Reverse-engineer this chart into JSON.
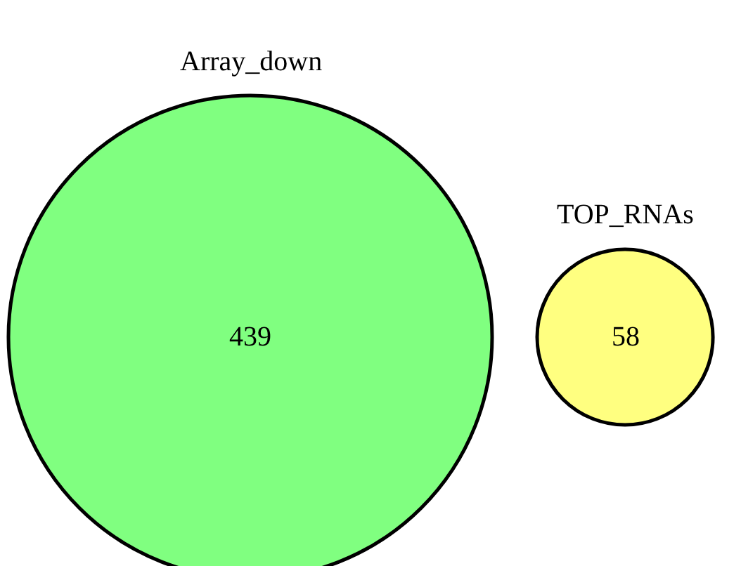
{
  "chart_data": {
    "type": "other",
    "categories": [
      "Array_down",
      "TOP_RNAs"
    ],
    "values": [
      439,
      58
    ],
    "data_labels": true,
    "colors": [
      "#80ff80",
      "#ffff80"
    ]
  }
}
